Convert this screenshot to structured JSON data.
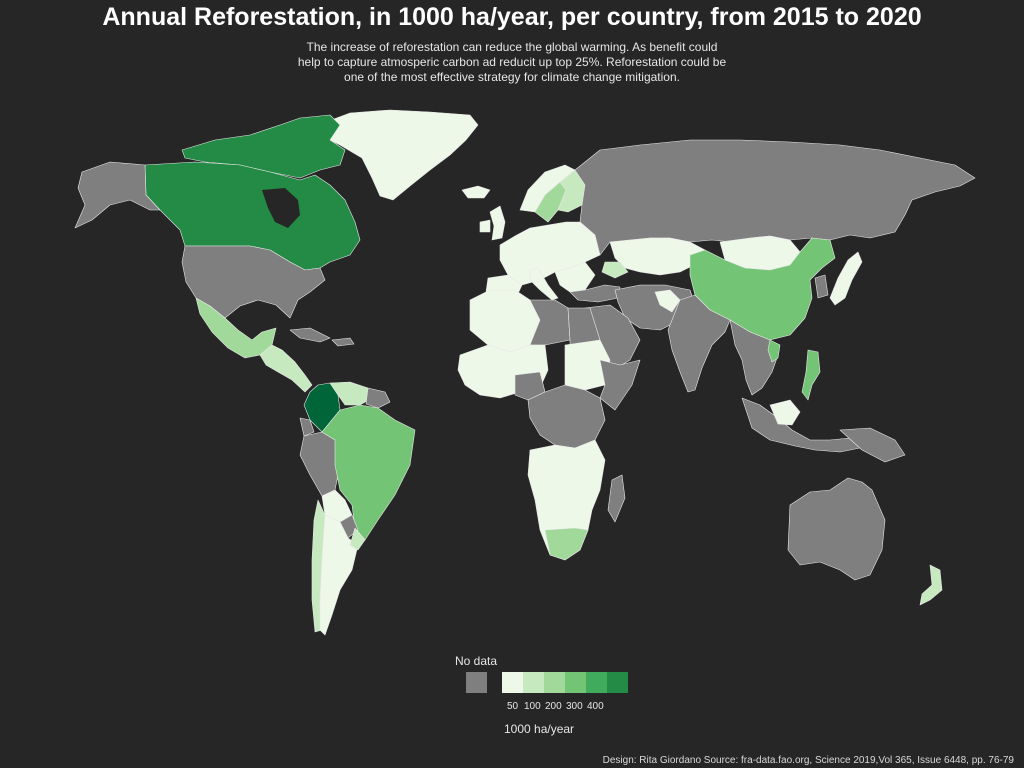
{
  "title": "Annual Reforestation, in 1000 ha/year, per country, from 2015 to 2020",
  "subtitle_lines": [
    "The increase of reforestation can reduce the global warming. As benefit could",
    "help to capture atmosperic carbon ad reducit up top 25%. Reforestation could be",
    "one of the most effective strategy for climate change mitigation."
  ],
  "legend": {
    "no_data_label": "No data",
    "no_data_color": "#7f7f7f",
    "scale_colors": [
      "#edf8e9",
      "#c7e9c0",
      "#a1d99b",
      "#74c476",
      "#41ab5d",
      "#238b45"
    ],
    "tick_labels": [
      "50",
      "100",
      "200",
      "300",
      "400"
    ],
    "unit_label": "1000 ha/year"
  },
  "caption": "Design: Rita Giordano Source: fra-data.fao.org, Science 2019,Vol 365, Issue 6448, pp. 76-79",
  "colors": {
    "background": "#262626",
    "border": "#ffffff",
    "highest": "#00663a"
  }
}
